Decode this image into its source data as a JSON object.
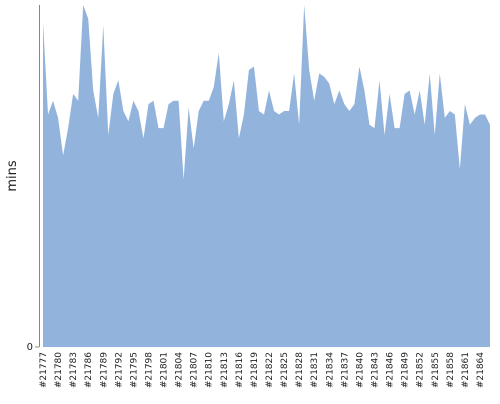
{
  "chart_data": {
    "type": "area",
    "y_label": "mins",
    "color": "#92b4dc",
    "categories": [
      "#21777",
      null,
      null,
      "#21780",
      null,
      null,
      "#21783",
      null,
      null,
      "#21786",
      null,
      null,
      "#21789",
      null,
      null,
      "#21792",
      null,
      null,
      "#21795",
      null,
      null,
      "#21798",
      null,
      null,
      "#21801",
      null,
      null,
      "#21804",
      null,
      null,
      "#21807",
      null,
      null,
      "#21810",
      null,
      null,
      "#21813",
      null,
      null,
      "#21816",
      null,
      null,
      "#21819",
      null,
      null,
      "#21822",
      null,
      null,
      "#21825",
      null,
      null,
      "#21828",
      null,
      null,
      "#21831",
      null,
      null,
      "#21834",
      null,
      null,
      "#21837",
      null,
      null,
      "#21840",
      null,
      null,
      "#21843",
      null,
      null,
      "#21846",
      null,
      null,
      "#21849",
      null,
      null,
      "#21852",
      null,
      null,
      "#21855",
      null,
      null,
      "#21858",
      null,
      null,
      "#21861",
      null,
      null,
      "#21864",
      null,
      null
    ],
    "values": [
      95,
      68,
      72,
      67,
      56,
      64,
      74,
      72,
      100,
      96,
      75,
      67,
      94,
      62,
      74,
      78,
      69,
      66,
      72,
      69,
      61,
      71,
      72,
      64,
      64,
      71,
      72,
      72,
      49,
      70,
      58,
      69,
      72,
      72,
      76,
      86,
      66,
      71,
      78,
      61,
      68,
      81,
      82,
      69,
      68,
      75,
      69,
      68,
      69,
      69,
      80,
      65,
      100,
      81,
      72,
      80,
      79,
      77,
      71,
      75,
      71,
      69,
      71,
      82,
      75,
      65,
      64,
      78,
      62,
      74,
      64,
      64,
      74,
      75,
      68,
      75,
      65,
      80,
      62,
      80,
      67,
      69,
      68,
      52,
      71,
      65,
      67,
      68,
      68,
      65
    ],
    "ylim": [
      0,
      100
    ],
    "yticks": [
      0
    ]
  }
}
